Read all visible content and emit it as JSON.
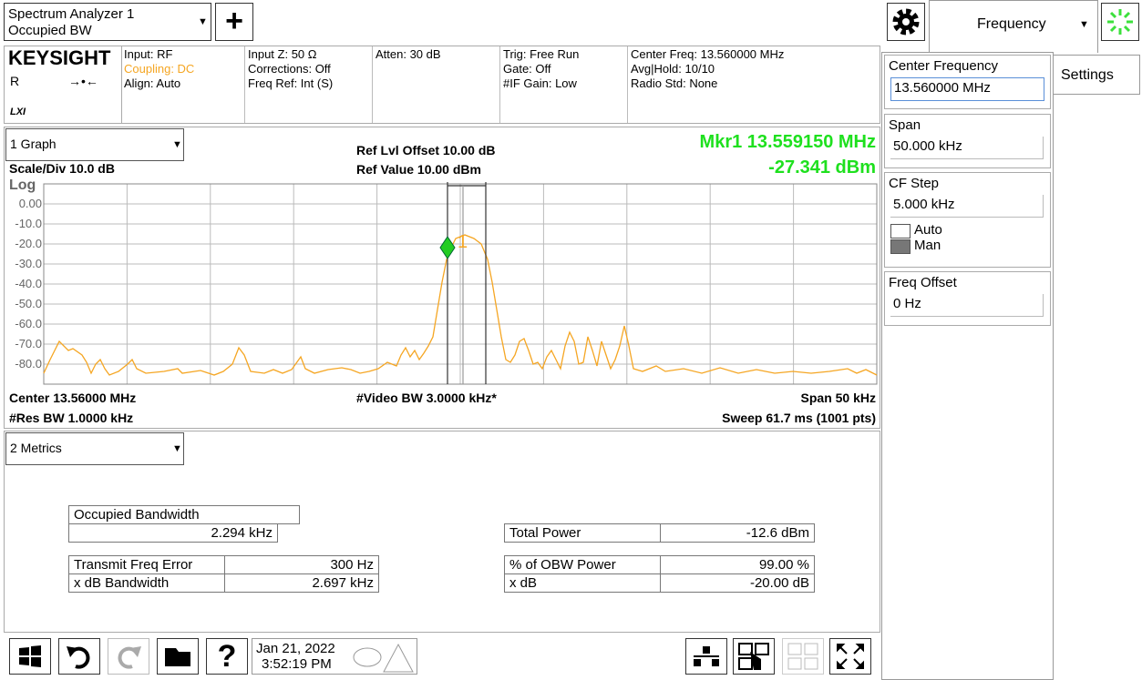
{
  "top_bar": {
    "app": [
      "Spectrum Analyzer 1",
      "Occupied BW"
    ],
    "tab": "Frequency"
  },
  "info_bar": {
    "brand": "KEYSIGHT",
    "r": "R",
    "lxi": "LXI",
    "columns": [
      [
        "Input: RF",
        "Coupling: DC",
        "Align: Auto"
      ],
      [
        "Input Z: 50 Ω",
        "Corrections: Off",
        "Freq Ref: Int (S)"
      ],
      [
        "Atten: 30 dB"
      ],
      [
        "Trig: Free Run",
        "Gate: Off",
        "#IF Gain: Low"
      ],
      [
        "Center Freq: 13.560000 MHz",
        "Avg|Hold: 10/10",
        "Radio Std: None"
      ]
    ]
  },
  "graph": {
    "title": "1 Graph",
    "ref_offset": "Ref Lvl Offset 10.00 dB",
    "ref_value": "Ref Value 10.00 dBm",
    "marker_freq": "Mkr1  13.559150 MHz",
    "marker_amp": "-27.341 dBm",
    "scale": "Scale/Div 10.0 dB",
    "log": "Log",
    "y_labels": [
      "0.00",
      "-10.0",
      "-20.0",
      "-30.0",
      "-40.0",
      "-50.0",
      "-60.0",
      "-70.0",
      "-80.0"
    ],
    "marker_label": "1",
    "center": "Center 13.56000 MHz",
    "video_bw": "#Video BW 3.0000 kHz*",
    "span": "Span 50 kHz",
    "res_bw": "#Res BW 1.0000 kHz",
    "sweep": "Sweep 61.7 ms (1001 pts)"
  },
  "metrics": {
    "title": "2 Metrics",
    "obw_label": "Occupied Bandwidth",
    "obw_value": "2.294 kHz",
    "left": [
      [
        "Transmit Freq Error",
        "300 Hz"
      ],
      [
        "x dB Bandwidth",
        "2.697 kHz"
      ]
    ],
    "right": [
      [
        "Total Power",
        "-12.6 dBm"
      ],
      [
        "% of OBW Power",
        "99.00 %"
      ],
      [
        "x dB",
        "-20.00 dB"
      ]
    ]
  },
  "taskbar": {
    "date": "Jan 21, 2022",
    "time": "3:52:19 PM"
  },
  "side_panel": {
    "settings": "Settings",
    "fields": [
      {
        "label": "Center Frequency",
        "value": "13.560000 MHz"
      },
      {
        "label": "Span",
        "value": "50.000 kHz"
      },
      {
        "label": "CF Step",
        "value": "5.000 kHz",
        "options": [
          "Auto",
          "Man"
        ]
      },
      {
        "label": "Freq Offset",
        "value": "0 Hz"
      }
    ]
  }
}
